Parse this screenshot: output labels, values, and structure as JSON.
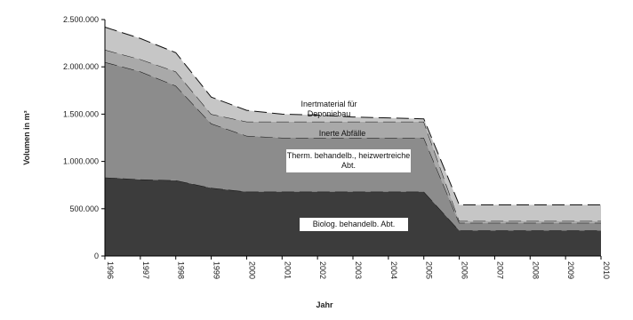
{
  "chart_data": {
    "type": "stacked-area",
    "y_label": "Volumen in m³",
    "x_label": "Jahr",
    "categories": [
      "1996",
      "1997",
      "1998",
      "1999",
      "2000",
      "2001",
      "2002",
      "2003",
      "2004",
      "2005",
      "2006",
      "2007",
      "2008",
      "2009",
      "2010"
    ],
    "series": [
      {
        "name": "Biolog. behandelb. Abt.",
        "color": "#3c3c3c",
        "values": [
          830000,
          810000,
          800000,
          720000,
          680000,
          680000,
          680000,
          680000,
          680000,
          680000,
          270000,
          270000,
          270000,
          270000,
          270000
        ]
      },
      {
        "name": "Therm. behandelb., heizwertreiche Abt.",
        "color": "#8c8c8c",
        "values": [
          1220000,
          1140000,
          1000000,
          680000,
          590000,
          570000,
          570000,
          570000,
          570000,
          570000,
          80000,
          80000,
          80000,
          80000,
          80000
        ]
      },
      {
        "name": "Inerte Abfälle",
        "color": "#a9a9a9",
        "values": [
          130000,
          130000,
          150000,
          100000,
          150000,
          170000,
          170000,
          170000,
          170000,
          170000,
          20000,
          20000,
          20000,
          20000,
          20000
        ]
      },
      {
        "name": "Inertmaterial für Deponiebau",
        "color": "#c6c6c6",
        "values": [
          240000,
          220000,
          200000,
          180000,
          120000,
          80000,
          70000,
          50000,
          40000,
          30000,
          170000,
          170000,
          170000,
          170000,
          170000
        ]
      }
    ],
    "ylim": [
      0,
      2500000
    ],
    "yticks": [
      0,
      {
        "value": 500000,
        "label": "500.000"
      },
      {
        "value": 1000000,
        "label": "1.000.000"
      },
      {
        "value": 1500000,
        "label": "1.500.000"
      },
      {
        "value": 2000000,
        "label": "2.000.000"
      },
      {
        "value": 2500000,
        "label": "2.500.000"
      }
    ]
  }
}
